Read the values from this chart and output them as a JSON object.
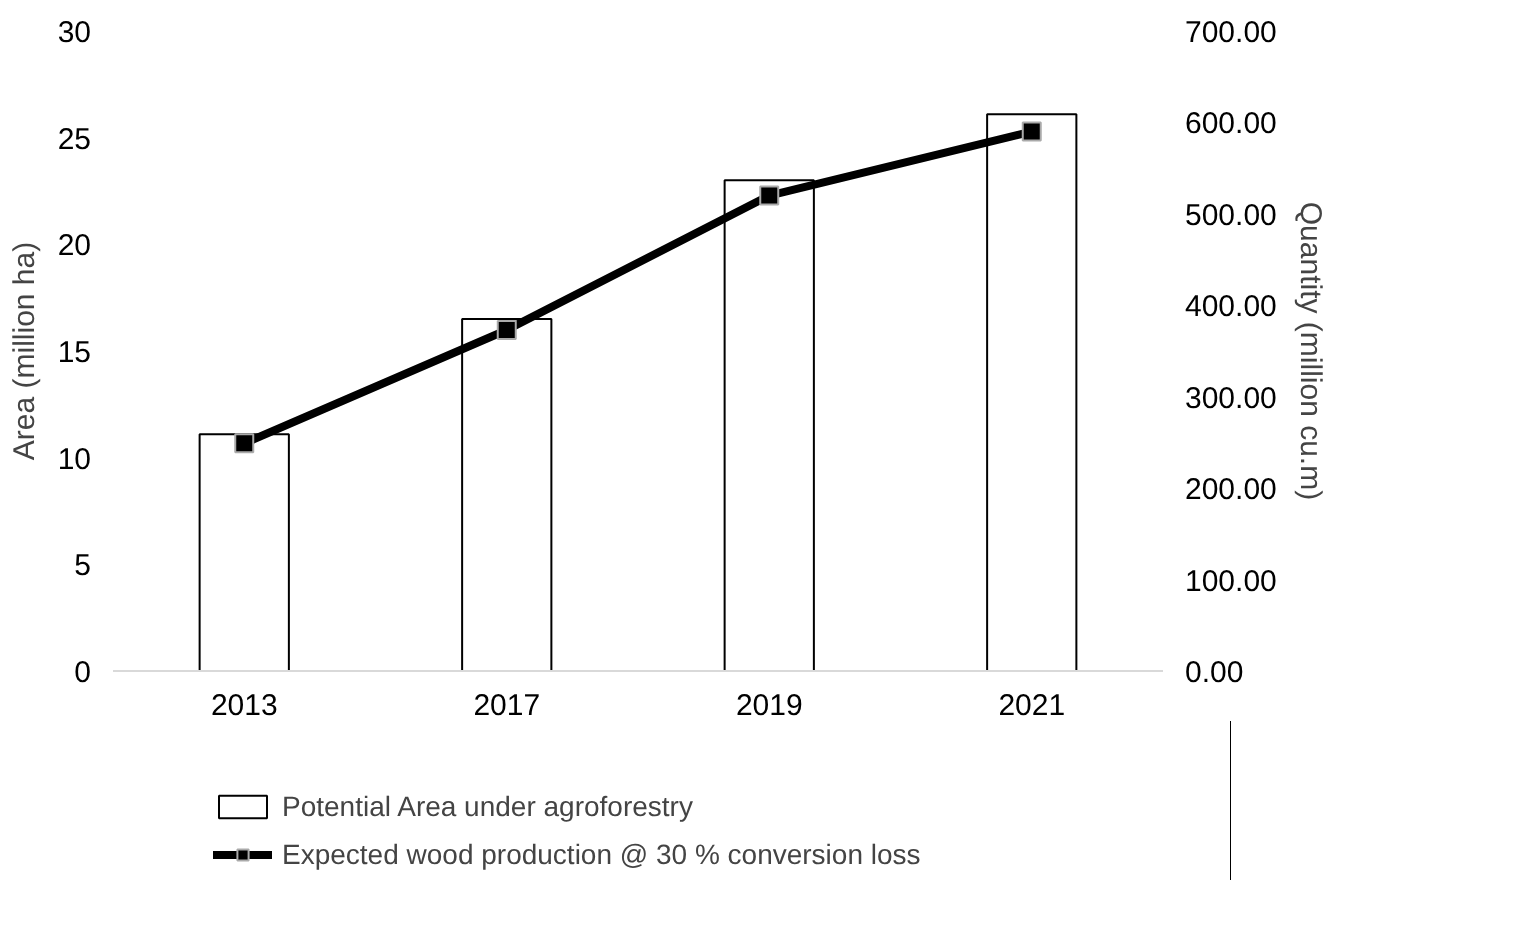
{
  "chart_data": {
    "type": "bar",
    "categories": [
      "2013",
      "2017",
      "2019",
      "2021"
    ],
    "ylabel": "Area (million ha)",
    "y2label": "Quantity (million cu.m)",
    "ylim": [
      0,
      30
    ],
    "yticks": [
      0,
      5,
      10,
      15,
      20,
      25,
      30
    ],
    "y2lim": [
      0,
      700
    ],
    "y2ticks": [
      {
        "value": 0,
        "label": "0.00"
      },
      {
        "value": 100,
        "label": "100.00"
      },
      {
        "value": 200,
        "label": "200.00"
      },
      {
        "value": 300,
        "label": "300.00"
      },
      {
        "value": 400,
        "label": "400.00"
      },
      {
        "value": 500,
        "label": "500.00"
      },
      {
        "value": 600,
        "label": "600.00"
      },
      {
        "value": 700,
        "label": "700.00"
      }
    ],
    "series": [
      {
        "name": "Potential Area under agroforestry",
        "color": "#ffffff",
        "values": [
          11.1,
          16.5,
          23.0,
          26.1
        ]
      },
      {
        "name": "Expected wood production @ 30 % conversion loss",
        "type": "line",
        "axis": "y2",
        "color": "#000000",
        "marker": "square",
        "values": [
          249,
          373,
          520,
          590
        ]
      }
    ],
    "legend": "bottom",
    "grid": false
  }
}
